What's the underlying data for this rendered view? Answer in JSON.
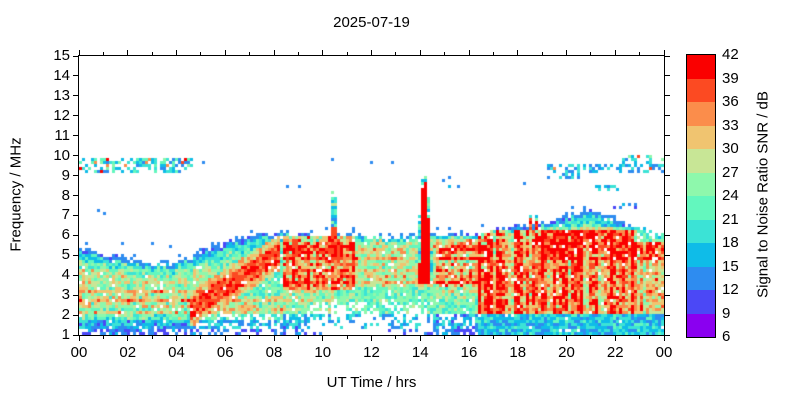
{
  "chart_data": {
    "type": "heatmap",
    "title": "2025-07-19",
    "xlabel": "UT Time / hrs",
    "ylabel": "Frequency / MHz",
    "colorbar_label": "Signal to Noise Ratio SNR / dB",
    "x_range": [
      0,
      24
    ],
    "y_range": [
      1,
      15
    ],
    "x_tick_hours": [
      0,
      2,
      4,
      6,
      8,
      10,
      12,
      14,
      16,
      18,
      20,
      22,
      24
    ],
    "x_tick_labels": [
      "00",
      "02",
      "04",
      "06",
      "08",
      "10",
      "12",
      "14",
      "16",
      "18",
      "20",
      "22",
      "00"
    ],
    "y_tick_values": [
      1,
      2,
      3,
      4,
      5,
      6,
      7,
      8,
      9,
      10,
      11,
      12,
      13,
      14,
      15
    ],
    "y_tick_labels": [
      "1",
      "2",
      "3",
      "4",
      "5",
      "6",
      "7",
      "8",
      "9",
      "10",
      "11",
      "12",
      "13",
      "14",
      "15"
    ],
    "colorbar_range": [
      6,
      42
    ],
    "colorbar_ticks": [
      6,
      9,
      12,
      15,
      18,
      21,
      24,
      27,
      30,
      33,
      36,
      39,
      42
    ],
    "colorbar_step_db": 3,
    "palette_low_to_high": [
      "#8A00F0",
      "#4B48F6",
      "#2E8CF0",
      "#0FBCE8",
      "#3BE3D6",
      "#63F7BE",
      "#8EF8AC",
      "#C8E696",
      "#F0C470",
      "#FB8D4B",
      "#FC4A22",
      "#FA0000"
    ],
    "background_color": "#FFFFFF",
    "envelope_fmax_mhz": {
      "t": [
        0,
        1,
        2,
        3,
        4,
        5,
        6,
        7,
        8,
        9,
        10,
        11,
        12,
        13,
        14,
        15,
        16,
        17,
        18,
        19,
        20,
        21,
        22,
        23,
        24
      ],
      "f": [
        5.3,
        5.05,
        4.75,
        4.55,
        4.65,
        5.1,
        5.6,
        5.95,
        6.2,
        6.1,
        6.05,
        6.0,
        5.85,
        5.9,
        6.05,
        6.0,
        6.1,
        6.25,
        6.45,
        6.6,
        7.0,
        7.35,
        6.9,
        6.3,
        5.95
      ]
    },
    "hot_regions": [
      {
        "t0": 8.4,
        "t1": 11.3,
        "f0": 3.2,
        "f1": 5.9,
        "amp": 16,
        "mode": "blob"
      },
      {
        "t0": 16.4,
        "t1": 22.8,
        "f0": 2.1,
        "f1": 6.3,
        "amp": 17,
        "mode": "vstreak"
      },
      {
        "t0": 0,
        "t1": 5.6,
        "f0": 2.4,
        "f1": 3.25,
        "amp": 13,
        "mode": "streak"
      },
      {
        "t0": 0,
        "t1": 5.6,
        "f0": 1.7,
        "f1": 2.15,
        "amp": 12,
        "mode": "streak"
      },
      {
        "t0": 0,
        "t1": 5.6,
        "f0": 3.3,
        "f1": 4.6,
        "amp": 6,
        "mode": "streak"
      },
      {
        "t0": 5.5,
        "t1": 8.4,
        "f0": 1.8,
        "f1": 3.0,
        "amp": 10,
        "mode": "streak"
      },
      {
        "t0": 8.4,
        "t1": 10.5,
        "f0": 2.2,
        "f1": 3.2,
        "amp": 7,
        "mode": "streak"
      },
      {
        "t0": 11.2,
        "t1": 16.6,
        "f0": 3.4,
        "f1": 5.9,
        "amp": 9,
        "mode": "streak"
      },
      {
        "t0": 14.6,
        "t1": 16.5,
        "f0": 2.8,
        "f1": 5.8,
        "amp": 8,
        "mode": "streak"
      },
      {
        "t0": 22.7,
        "t1": 24,
        "f0": 2.0,
        "f1": 5.6,
        "amp": 10,
        "mode": "vstreak"
      },
      {
        "t0": 19.0,
        "t1": 24,
        "f0": 4.8,
        "f1": 6.4,
        "amp": 8,
        "mode": "streak"
      }
    ],
    "diagonal_ridge": {
      "t0": 4.6,
      "t1": 8.2,
      "f_start": 2.3,
      "slope_mhz_per_hr": 0.78,
      "halfwidth_mhz": 0.5
    },
    "spikes": [
      {
        "tc": 14.18,
        "tw": 0.3,
        "fbase": 3.6,
        "ftop": 9.05,
        "type": "hot",
        "corefmax": 9.0
      },
      {
        "tc": 10.45,
        "tw": 0.2,
        "fbase": 4.6,
        "ftop": 8.25,
        "type": "mixed",
        "corefmax": 6.4
      },
      {
        "tc": 18.55,
        "tw": 0.07,
        "fbase": 6.2,
        "ftop": 7.25,
        "type": "mixed",
        "corefmax": 6.8
      },
      {
        "tc": 18.8,
        "tw": 0.07,
        "fbase": 6.2,
        "ftop": 7.15,
        "type": "mixed",
        "corefmax": 6.7
      }
    ],
    "scatter_patches": [
      {
        "t0": 0,
        "t1": 4.7,
        "f0": 9.1,
        "f1": 9.95,
        "density": 0.55,
        "vlo": 13,
        "vhi": 25,
        "hot": 0.08
      },
      {
        "t0": 19.2,
        "t1": 24,
        "f0": 9.2,
        "f1": 9.6,
        "density": 0.45,
        "vlo": 12,
        "vhi": 20,
        "hot": 0.04
      },
      {
        "t0": 22.3,
        "t1": 24,
        "f0": 9.6,
        "f1": 10.1,
        "density": 0.35,
        "vlo": 14,
        "vhi": 26,
        "hot": 0.12
      },
      {
        "t0": 19.4,
        "t1": 20.5,
        "f0": 8.85,
        "f1": 9.15,
        "density": 0.5,
        "vlo": 13,
        "vhi": 21,
        "hot": 0
      },
      {
        "t0": 21.2,
        "t1": 22.2,
        "f0": 8.3,
        "f1": 8.6,
        "density": 0.5,
        "vlo": 14,
        "vhi": 21,
        "hot": 0
      },
      {
        "t0": 21.9,
        "t1": 23.0,
        "f0": 7.35,
        "f1": 7.65,
        "density": 0.3,
        "vlo": 11,
        "vhi": 16,
        "hot": 0
      },
      {
        "t0": 14.7,
        "t1": 15.2,
        "f0": 8.4,
        "f1": 9.0,
        "density": 0.2,
        "vlo": 11,
        "vhi": 16,
        "hot": 0
      }
    ],
    "isolated_dots_t_f": [
      [
        1.1,
        7.1
      ],
      [
        0.85,
        7.2
      ],
      [
        1.8,
        5.6
      ],
      [
        3.0,
        5.55
      ],
      [
        3.7,
        5.5
      ],
      [
        4.55,
        9.6
      ],
      [
        5.1,
        9.6
      ],
      [
        8.5,
        8.4
      ],
      [
        9.1,
        8.4
      ],
      [
        10.4,
        9.75
      ],
      [
        12.0,
        9.7
      ],
      [
        12.9,
        9.65
      ],
      [
        14.9,
        8.8
      ],
      [
        15.55,
        8.5
      ],
      [
        18.3,
        8.6
      ],
      [
        19.2,
        8.9
      ],
      [
        21.6,
        6.55
      ],
      [
        22.1,
        6.5
      ],
      [
        22.6,
        6.5
      ]
    ],
    "midday_dropout": {
      "t0": 9.3,
      "t1": 14.3,
      "f_below": 2.7
    },
    "grid": false,
    "legend_position": "right-colorbar"
  }
}
